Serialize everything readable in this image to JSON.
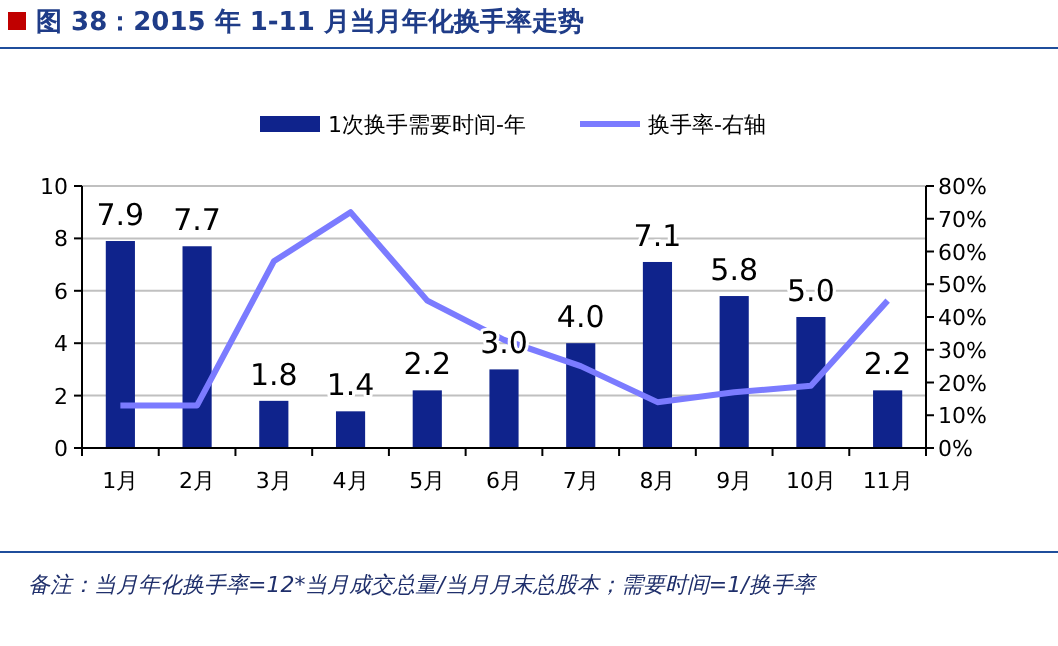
{
  "chart_data": {
    "type": "bar",
    "title": "图 38：2015 年 1-11 月当月年化换手率走势",
    "categories": [
      "1月",
      "2月",
      "3月",
      "4月",
      "5月",
      "6月",
      "7月",
      "8月",
      "9月",
      "10月",
      "11月"
    ],
    "series": [
      {
        "name": "1次换手需要时间-年",
        "color": "#0f238c",
        "values": [
          7.9,
          7.7,
          1.8,
          1.4,
          2.2,
          3.0,
          4.0,
          7.1,
          5.8,
          5.0,
          2.2
        ],
        "value_labels": [
          "7.9",
          "7.7",
          "1.8",
          "1.4",
          "2.2",
          "3.0",
          "4.0",
          "7.1",
          "5.8",
          "5.0",
          "2.2"
        ]
      },
      {
        "name": "换手率-右轴",
        "type": "line",
        "axis": "y2",
        "color": "#7b7bff",
        "values": [
          13,
          13,
          57,
          72,
          45,
          33,
          25,
          14,
          17,
          19,
          45
        ]
      }
    ],
    "ylim": [
      0,
      10
    ],
    "yticks": [
      0,
      2,
      4,
      6,
      8,
      10
    ],
    "y2lim": [
      0,
      80
    ],
    "y2ticks": [
      {
        "value": 0,
        "label": "0%"
      },
      {
        "value": 10,
        "label": "10%"
      },
      {
        "value": 20,
        "label": "20%"
      },
      {
        "value": 30,
        "label": "30%"
      },
      {
        "value": 40,
        "label": "40%"
      },
      {
        "value": 50,
        "label": "50%"
      },
      {
        "value": 60,
        "label": "60%"
      },
      {
        "value": 70,
        "label": "70%"
      },
      {
        "value": 80,
        "label": "80%"
      }
    ],
    "grid": "y",
    "legend": "top",
    "line_style": "solid",
    "marker": "none",
    "annotations": [
      "备注：当月年化换手率=12*当月成交总量/当月月末总股本；需要时间=1/换手率"
    ]
  }
}
